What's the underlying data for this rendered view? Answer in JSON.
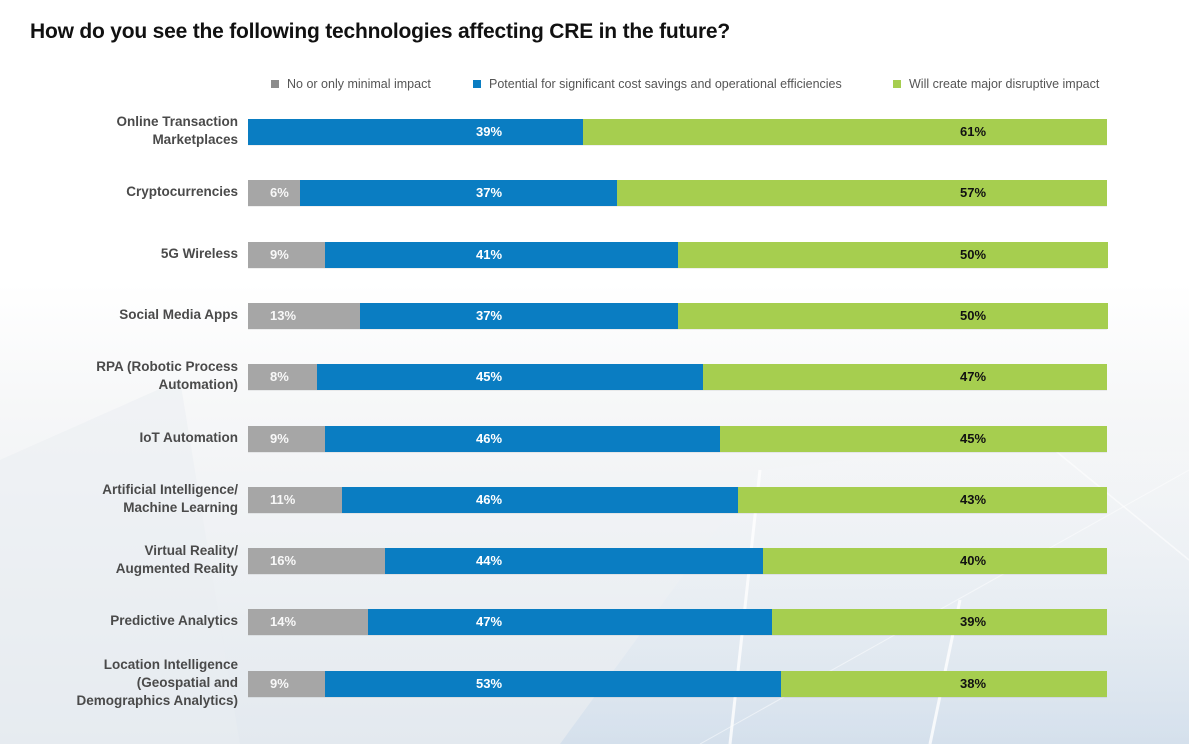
{
  "title": "How do you see the following technologies affecting CRE in the future?",
  "colors": {
    "minimal": "#a6a6a6",
    "cost": "#0a7dc2",
    "disruptive": "#a6ce4f",
    "label_light": "#ffffff",
    "label_dark": "#111111"
  },
  "legend": [
    {
      "key": "minimal",
      "label": "No or only minimal impact",
      "color": "#8c8c8c"
    },
    {
      "key": "cost",
      "label": "Potential for significant cost savings and operational efficiencies",
      "color": "#0a7dc2"
    },
    {
      "key": "disruptive",
      "label": "Will create major disruptive impact",
      "color": "#a6ce4f"
    }
  ],
  "chart_data": {
    "type": "bar",
    "orientation": "horizontal",
    "stacked": true,
    "normalized": true,
    "title": "How do you see the following technologies affecting CRE in the future?",
    "xlabel": "",
    "ylabel": "",
    "xlim": [
      0,
      100
    ],
    "unit": "%",
    "grid": false,
    "legend_position": "top",
    "categories": [
      [
        "Online Transaction",
        "Marketplaces"
      ],
      [
        "Cryptocurrencies"
      ],
      [
        "5G Wireless"
      ],
      [
        "Social Media Apps"
      ],
      [
        "RPA (Robotic Process",
        "Automation)"
      ],
      [
        "IoT Automation"
      ],
      [
        "Artificial Intelligence/",
        "Machine Learning"
      ],
      [
        "Virtual Reality/",
        "Augmented Reality"
      ],
      [
        "Predictive Analytics"
      ],
      [
        "Location Intelligence",
        "(Geospatial and",
        "Demographics Analytics)"
      ]
    ],
    "series": [
      {
        "name": "No or only minimal impact",
        "key": "minimal",
        "values": [
          0,
          6,
          9,
          13,
          8,
          9,
          11,
          16,
          14,
          9
        ]
      },
      {
        "name": "Potential for significant cost savings and operational efficiencies",
        "key": "cost",
        "values": [
          39,
          37,
          41,
          37,
          45,
          46,
          46,
          44,
          47,
          53
        ]
      },
      {
        "name": "Will create major disruptive impact",
        "key": "disruptive",
        "values": [
          61,
          57,
          50,
          50,
          47,
          45,
          43,
          40,
          39,
          38
        ]
      }
    ],
    "data_labels": [
      [
        null,
        "39%",
        "61%"
      ],
      [
        "6%",
        "37%",
        "57%"
      ],
      [
        "9%",
        "41%",
        "50%"
      ],
      [
        "13%",
        "37%",
        "50%"
      ],
      [
        "8%",
        "45%",
        "47%"
      ],
      [
        "9%",
        "46%",
        "45%"
      ],
      [
        "11%",
        "46%",
        "43%"
      ],
      [
        "16%",
        "44%",
        "40%"
      ],
      [
        "14%",
        "47%",
        "39%"
      ],
      [
        "9%",
        "53%",
        "38%"
      ]
    ]
  }
}
